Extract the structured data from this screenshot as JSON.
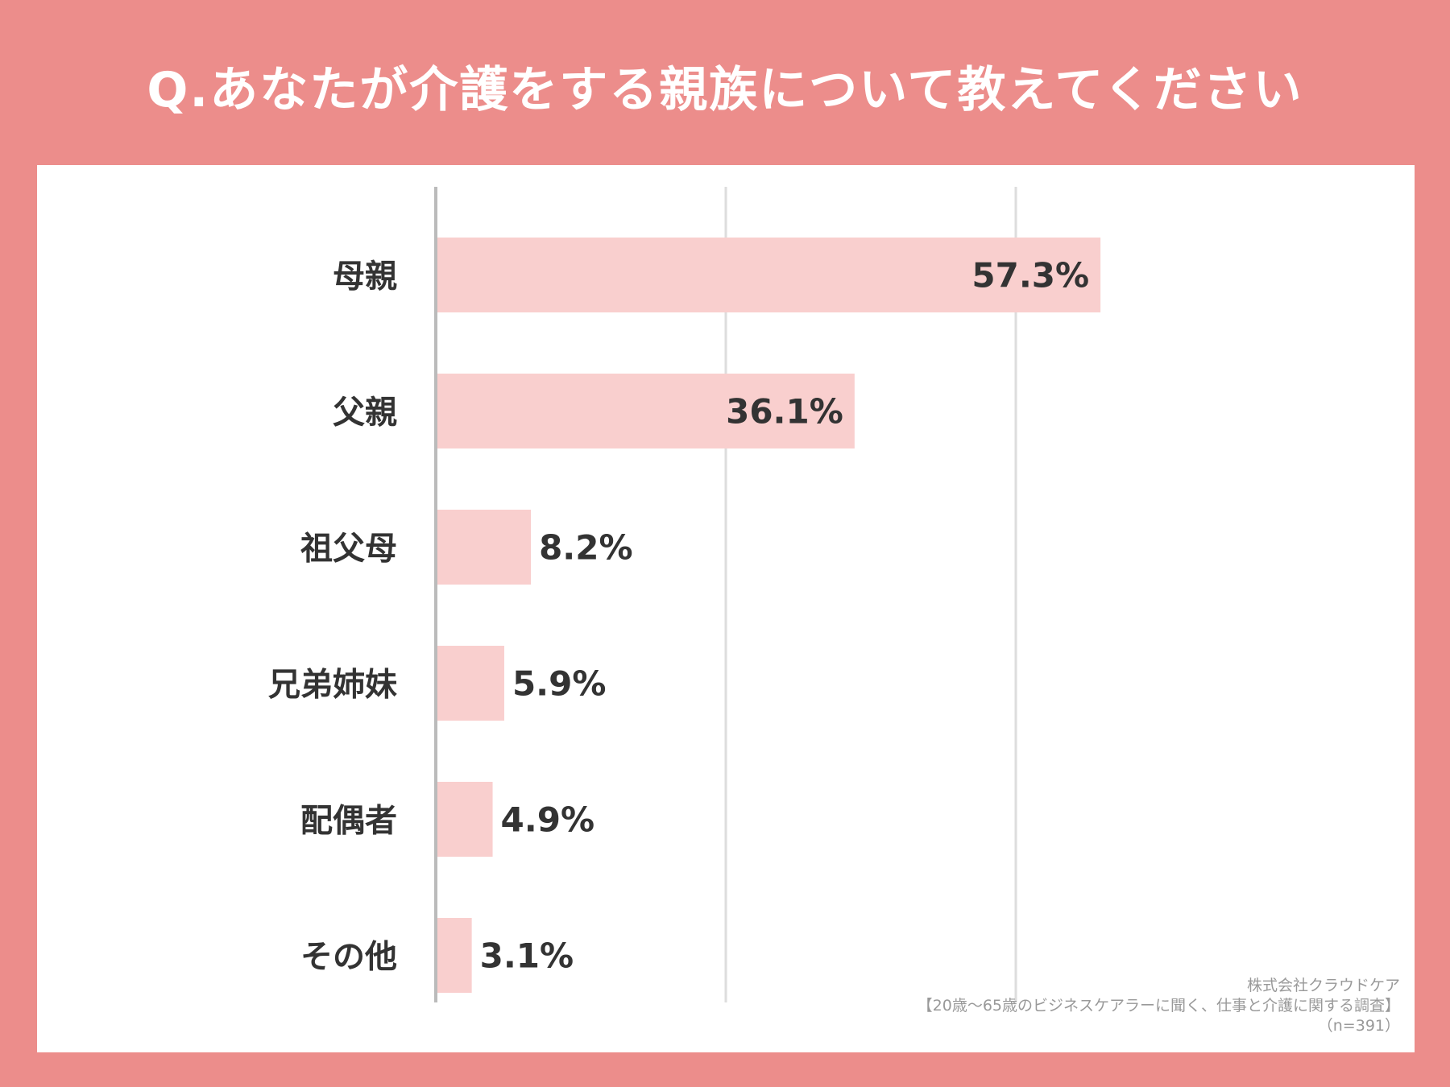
{
  "colors": {
    "background": "#ec8d8b",
    "panel": "#ffffff",
    "bar": "#f9cfce",
    "text": "#333333",
    "grid": "#dddddd",
    "axis": "#bbbbbb",
    "title_text": "#ffffff",
    "source_text": "#999999"
  },
  "title": "Q.あなたが介護をする親族について教えてください",
  "source": {
    "company": "株式会社クラウドケア",
    "survey": "【20歳〜65歳のビジネスケアラーに聞く、仕事と介護に関する調査】",
    "sample": "（n=391）"
  },
  "chart_data": {
    "type": "bar",
    "orientation": "horizontal",
    "categories": [
      "母親",
      "父親",
      "祖父母",
      "兄弟姉妹",
      "配偶者",
      "その他"
    ],
    "values": [
      57.3,
      36.1,
      8.2,
      5.9,
      4.9,
      3.1
    ],
    "value_labels": [
      "57.3%",
      "36.1%",
      "8.2%",
      "5.9%",
      "4.9%",
      "3.1%"
    ],
    "unit": "%",
    "xlim": [
      0,
      100
    ],
    "gridlines_at": [
      0,
      25,
      50
    ],
    "grid": true,
    "legend": "none"
  }
}
